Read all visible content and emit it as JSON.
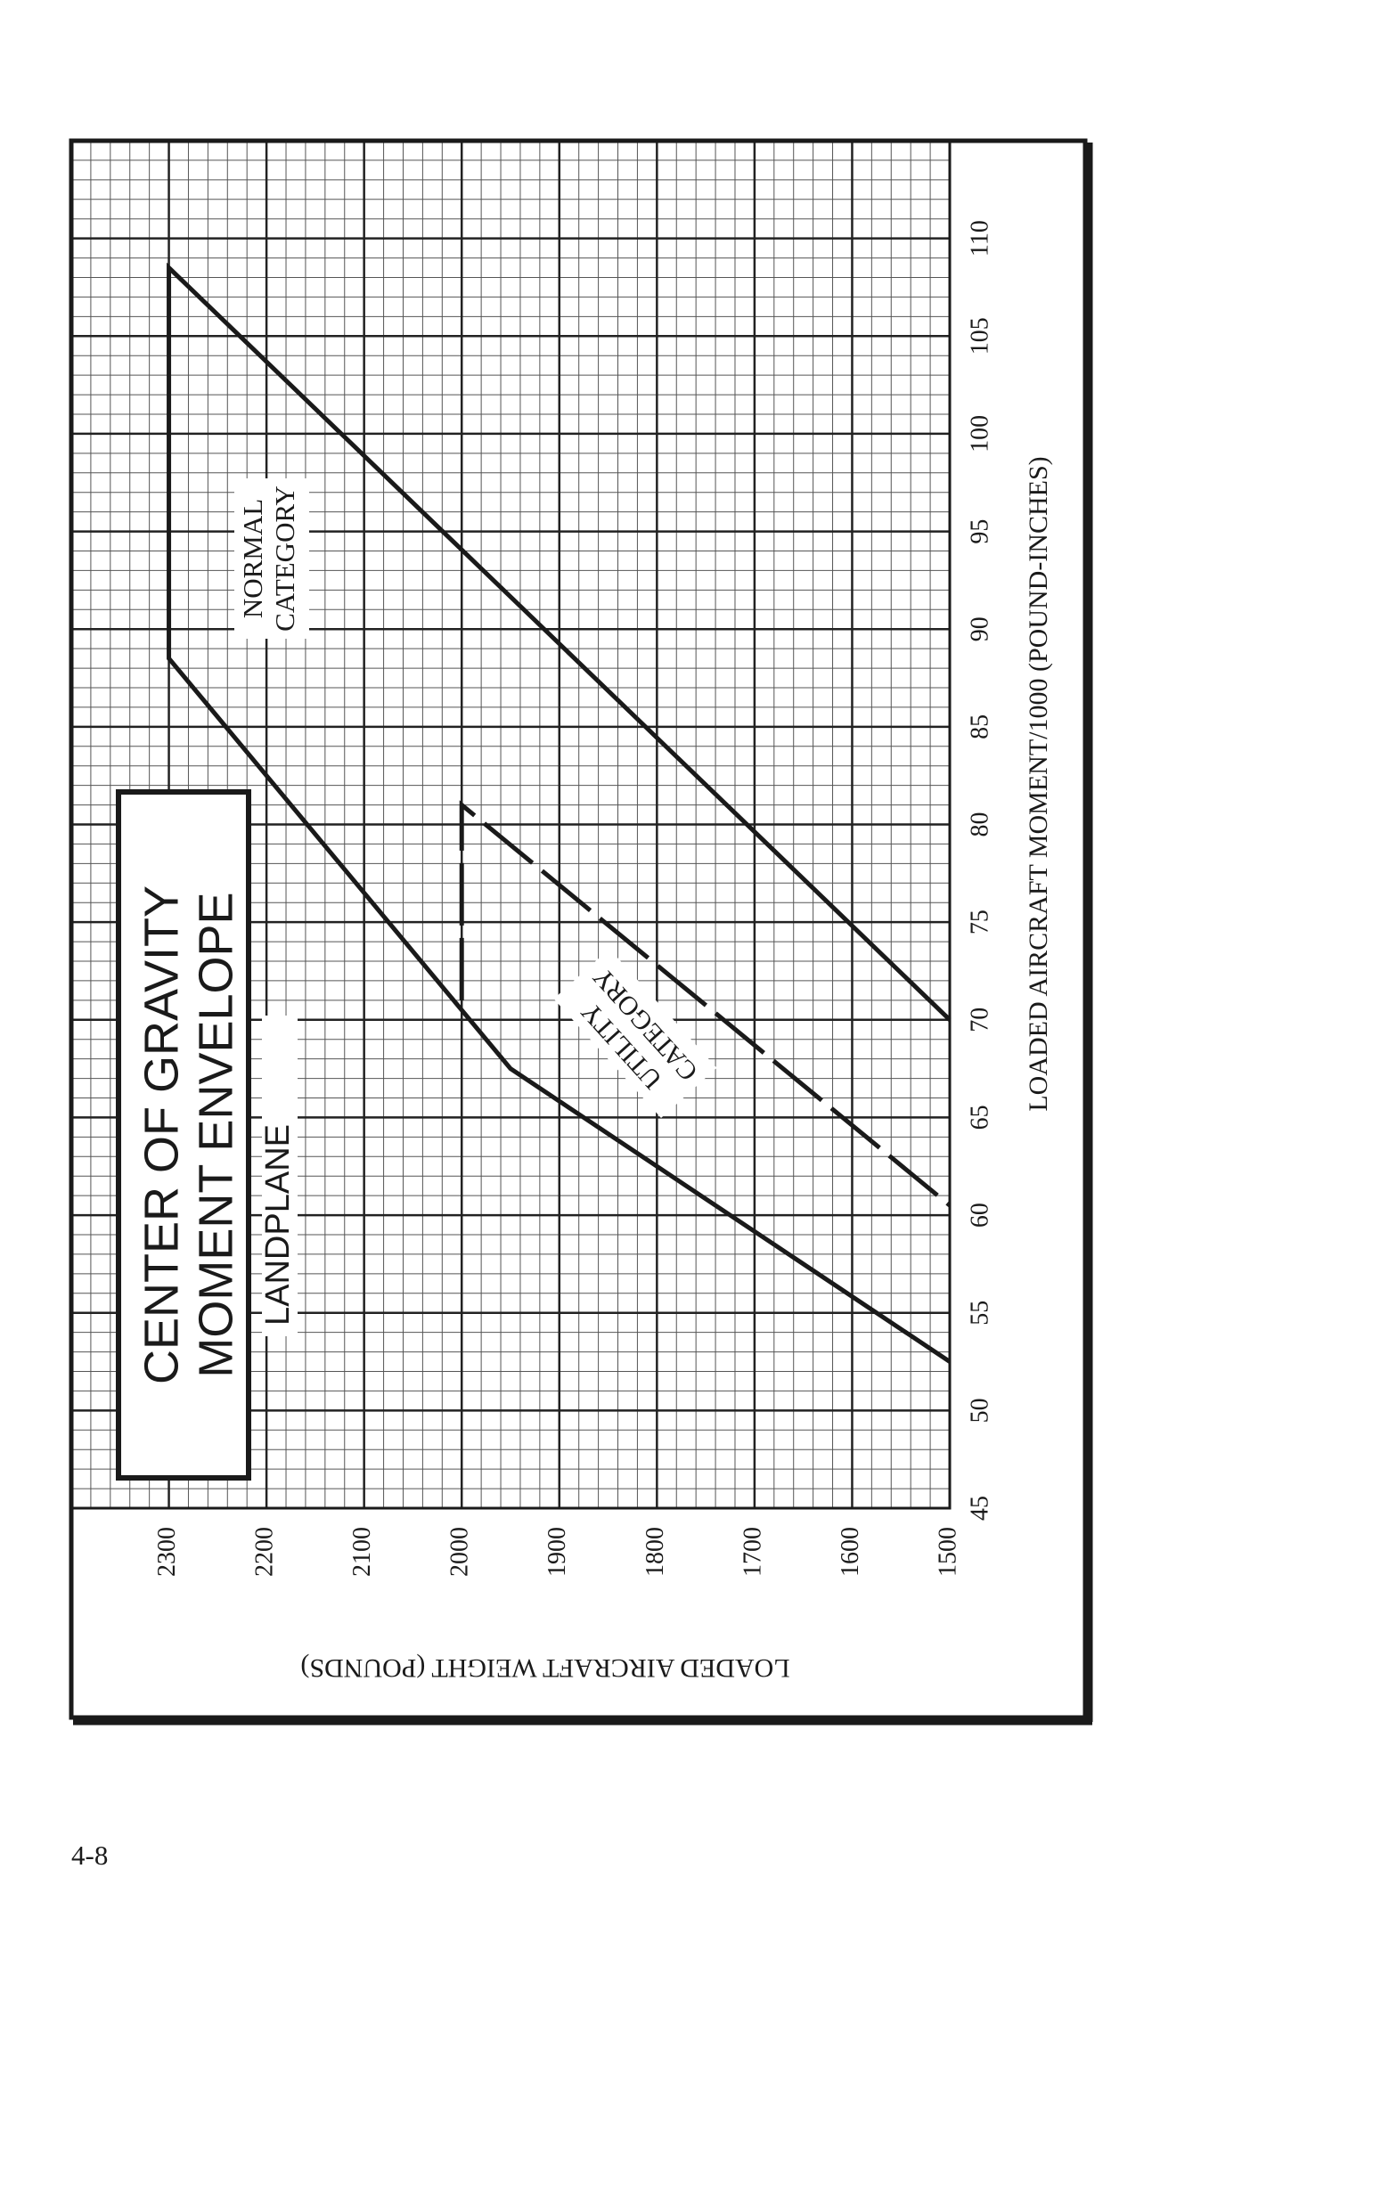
{
  "page_number": "4-8",
  "chart_data": {
    "type": "line",
    "title": [
      "CENTER OF GRAVITY",
      "MOMENT ENVELOPE"
    ],
    "subtitle": "LANDPLANE",
    "xlabel": "LOADED AIRCRAFT MOMENT/1000 (POUND-INCHES)",
    "ylabel": "LOADED AIRCRAFT WEIGHT (POUNDS)",
    "xlim": [
      45,
      115
    ],
    "ylim": [
      1500,
      2400
    ],
    "xticks": [
      45,
      50,
      55,
      60,
      65,
      70,
      75,
      80,
      85,
      90,
      95,
      100,
      105,
      110
    ],
    "yticks": [
      1500,
      1600,
      1700,
      1800,
      1900,
      2000,
      2100,
      2200,
      2300
    ],
    "grid": true,
    "minor_grid": [
      1,
      20
    ],
    "series": [
      {
        "name": [
          "NORMAL",
          "CATEGORY"
        ],
        "color": "#1a1a1a",
        "dashed": false,
        "x": [
          52.5,
          67.5,
          88.5,
          108.5,
          70
        ],
        "values": [
          1500,
          1950,
          2300,
          2300,
          1500
        ]
      },
      {
        "name": [
          "UTILITY",
          "CATEGORY"
        ],
        "color": "#1a1a1a",
        "dashed": true,
        "x": [
          71,
          81,
          60.5
        ],
        "values": [
          2000,
          2000,
          1500
        ]
      }
    ]
  }
}
